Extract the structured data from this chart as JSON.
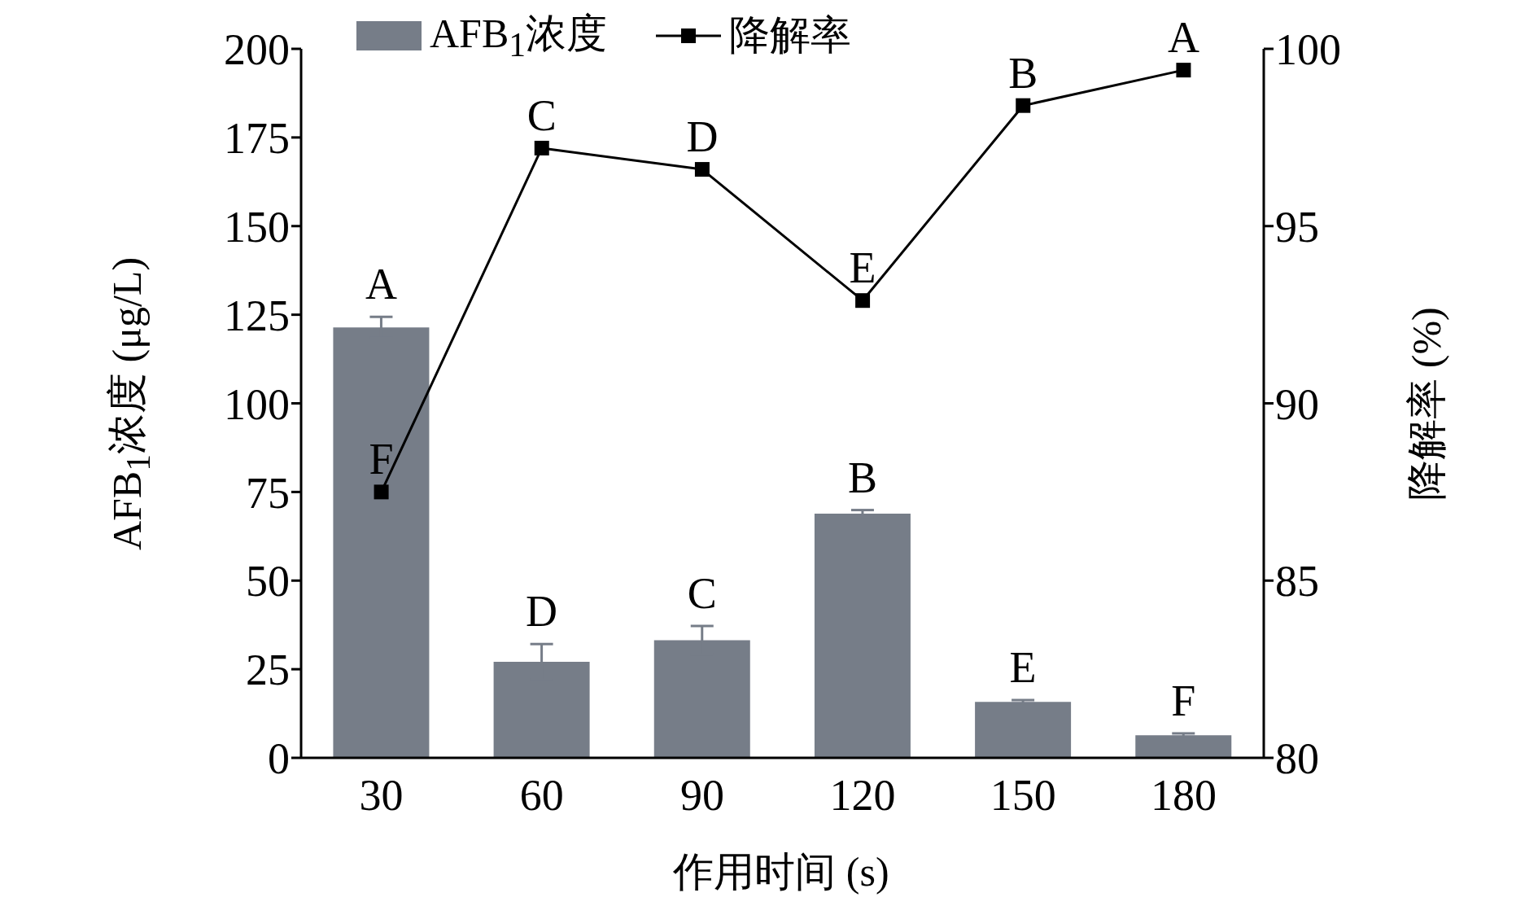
{
  "chart_data": {
    "type": "bar",
    "xlabel": "作用时间 (s)",
    "ylabel": "AFB$_{1}$浓度 (μg/L)",
    "y2label": "降解率 (%)",
    "categories": [
      "30",
      "60",
      "90",
      "120",
      "150",
      "180"
    ],
    "series": [
      {
        "name": "AFB$_{1}$浓度",
        "color": "#767d88",
        "values": [
          121.4,
          27.1,
          33.2,
          68.9,
          15.8,
          6.4
        ],
        "errors": [
          3,
          5,
          4,
          1,
          0.5,
          0.5
        ],
        "value_labels": [
          "A",
          "D",
          "C",
          "B",
          "E",
          "F"
        ]
      },
      {
        "name": "降解率",
        "type": "line",
        "axis": "y2",
        "color": "#000000",
        "values": [
          87.5,
          97.2,
          96.6,
          92.9,
          98.4,
          99.4
        ],
        "value_labels": [
          "F",
          "C",
          "D",
          "E",
          "B",
          "A"
        ]
      }
    ],
    "ylim": [
      0,
      200
    ],
    "yticks": [
      0,
      25,
      50,
      75,
      100,
      125,
      150,
      175,
      200
    ],
    "y2lim": [
      80,
      100
    ],
    "y2ticks": [
      80,
      85,
      90,
      95,
      100
    ],
    "marker": "square",
    "line_style": "solid",
    "legend": "top",
    "grid": false
  }
}
